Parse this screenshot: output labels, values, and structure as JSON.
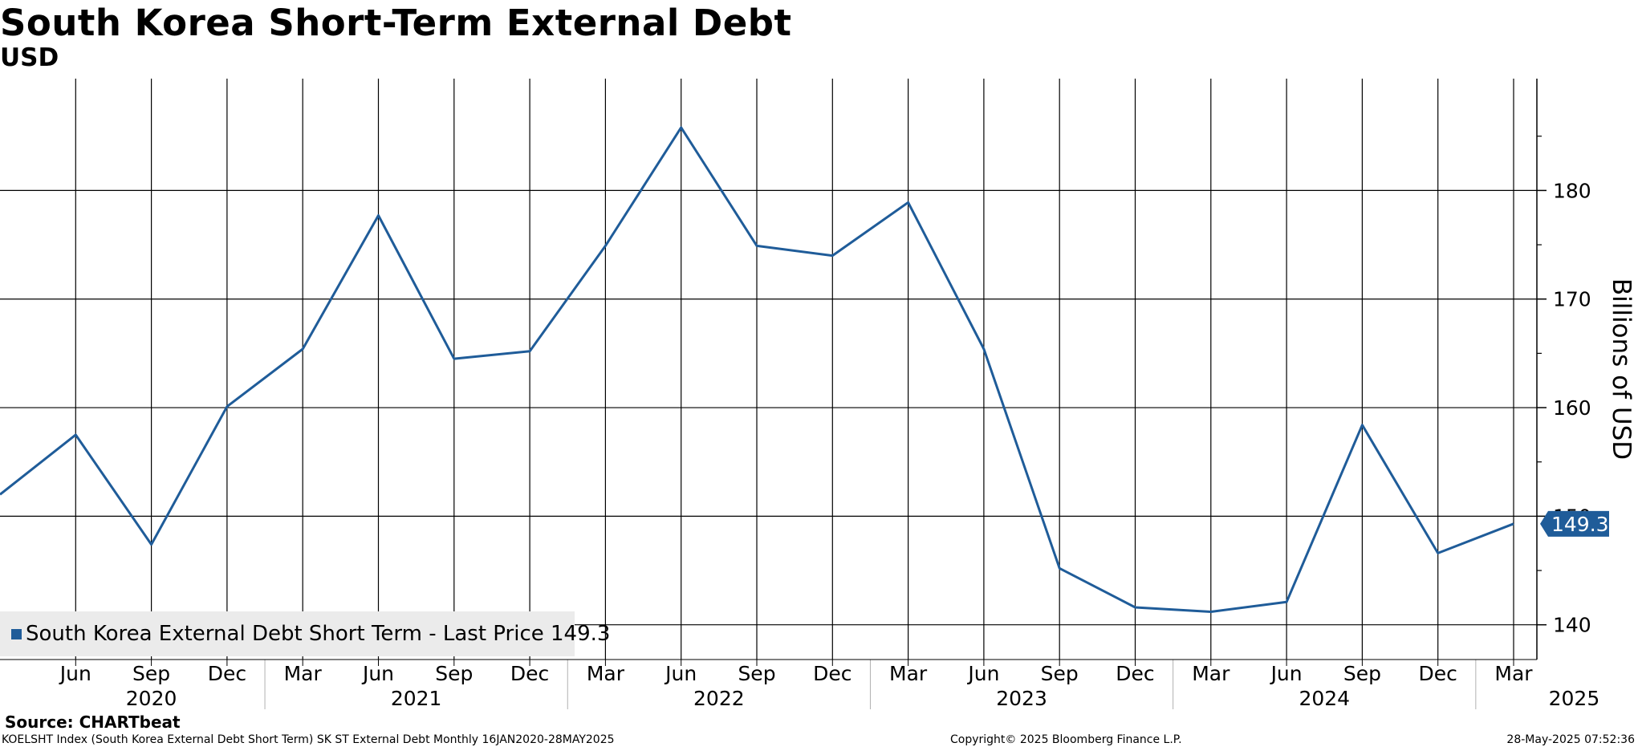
{
  "header": {
    "title": "South Korea Short-Term External Debt",
    "subtitle": "USD"
  },
  "legend": {
    "label": "South Korea External Debt Short Term - Last Price 149.3"
  },
  "last_price_badge": "149.3",
  "footer": {
    "source": "Source: CHARTbeat",
    "left": "KOELSHT Index (South Korea External Debt Short Term) SK ST External Debt  Monthly 16JAN2020-28MAY2025",
    "center": "Copyright© 2025 Bloomberg Finance L.P.",
    "right": "28-May-2025 07:52:36"
  },
  "colors": {
    "series": "#1f5c99",
    "badge": "#1f5c99",
    "legend_bg": "#ebebeb"
  },
  "chart_data": {
    "type": "line",
    "title": "South Korea Short-Term External Debt",
    "subtitle": "USD",
    "ylabel": "Billions of USD",
    "ylim": [
      136.8,
      190.3
    ],
    "yticks": [
      140,
      150,
      160,
      170,
      180
    ],
    "ytick_labels": [
      "140",
      "150",
      "160",
      "170",
      "180"
    ],
    "y_axis_side": "right",
    "grid": true,
    "legend_placement": "bottom-left",
    "x_tick_labels": [
      "Jun",
      "Sep",
      "Dec",
      "Mar",
      "Jun",
      "Sep",
      "Dec",
      "Mar",
      "Jun",
      "Sep",
      "Dec",
      "Mar",
      "Jun",
      "Sep",
      "Dec",
      "Mar",
      "Jun",
      "Sep",
      "Dec",
      "Mar"
    ],
    "year_labels": [
      "2020",
      "2021",
      "2022",
      "2023",
      "2024",
      "2025"
    ],
    "series": [
      {
        "name": "South Korea External Debt Short Term",
        "x": [
          "2020-03",
          "2020-06",
          "2020-09",
          "2020-12",
          "2021-03",
          "2021-06",
          "2021-09",
          "2021-12",
          "2022-03",
          "2022-06",
          "2022-09",
          "2022-12",
          "2023-03",
          "2023-06",
          "2023-09",
          "2023-12",
          "2024-03",
          "2024-06",
          "2024-09",
          "2024-12",
          "2025-03"
        ],
        "values": [
          152.0,
          157.5,
          147.4,
          160.1,
          165.4,
          177.7,
          164.5,
          165.2,
          174.9,
          185.8,
          174.9,
          174.0,
          178.9,
          165.4,
          145.2,
          141.6,
          141.2,
          142.1,
          158.4,
          146.6,
          149.3
        ]
      }
    ]
  }
}
